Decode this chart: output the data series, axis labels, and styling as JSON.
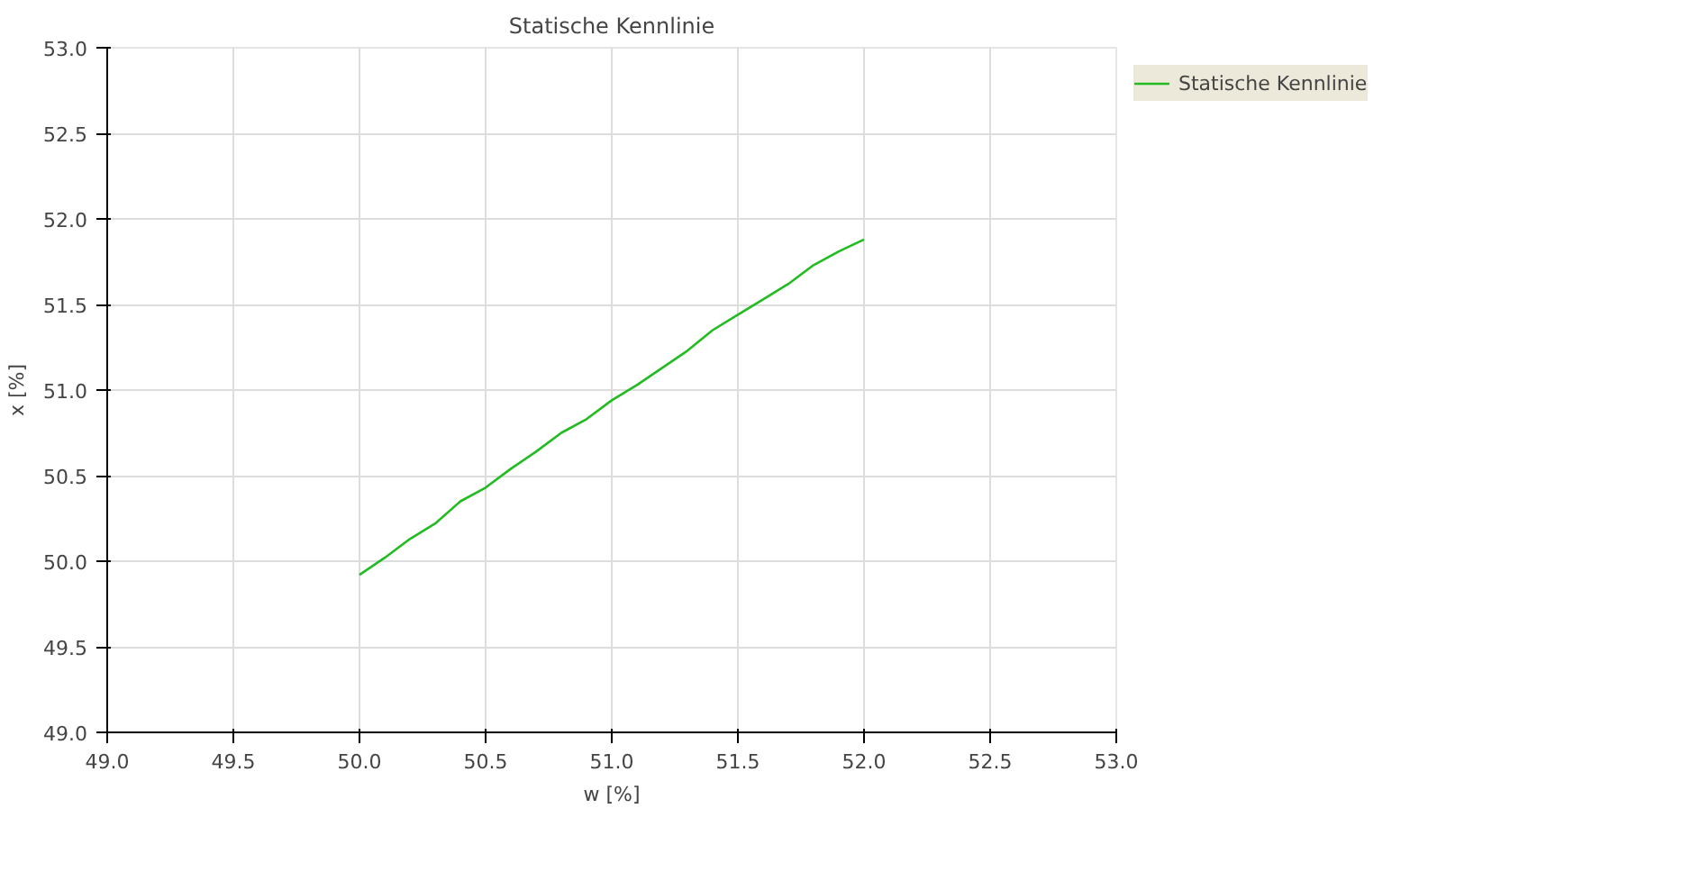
{
  "chart_data": {
    "type": "line",
    "title": "Statische Kennlinie",
    "xlabel": "w [%]",
    "ylabel": "x [%]",
    "xlim": [
      49.0,
      53.0
    ],
    "ylim": [
      49.0,
      53.0
    ],
    "xticks": [
      {
        "value": 49,
        "label": "49.0"
      },
      {
        "value": 49.5,
        "label": "49.5"
      },
      {
        "value": 50,
        "label": "50.0"
      },
      {
        "value": 50.5,
        "label": "50.5"
      },
      {
        "value": 51,
        "label": "51.0"
      },
      {
        "value": 51.5,
        "label": "51.5"
      },
      {
        "value": 52,
        "label": "52.0"
      },
      {
        "value": 52.5,
        "label": "52.5"
      },
      {
        "value": 53,
        "label": "53.0"
      }
    ],
    "yticks": [
      {
        "value": 49,
        "label": "49.0"
      },
      {
        "value": 49.5,
        "label": "49.5"
      },
      {
        "value": 50,
        "label": "50.0"
      },
      {
        "value": 50.5,
        "label": "50.5"
      },
      {
        "value": 51,
        "label": "51.0"
      },
      {
        "value": 51.5,
        "label": "51.5"
      },
      {
        "value": 52,
        "label": "52.0"
      },
      {
        "value": 52.5,
        "label": "52.5"
      },
      {
        "value": 53,
        "label": "53.0"
      }
    ],
    "grid": true,
    "legend": "right",
    "marker": "none",
    "line_style": "solid",
    "series": [
      {
        "name": "Statische Kennlinie",
        "color": "#22bb22",
        "x": [
          50.0,
          50.1,
          50.2,
          50.3,
          50.4,
          50.5,
          50.6,
          50.7,
          50.8,
          50.9,
          51.0,
          51.1,
          51.2,
          51.3,
          51.4,
          51.5,
          51.6,
          51.7,
          51.8,
          51.9,
          52.0
        ],
        "values": [
          49.92,
          50.02,
          50.13,
          50.22,
          50.35,
          50.43,
          50.54,
          50.64,
          50.75,
          50.83,
          50.94,
          51.03,
          51.13,
          51.23,
          51.35,
          51.44,
          51.53,
          51.62,
          51.73,
          51.81,
          51.88
        ]
      }
    ]
  }
}
